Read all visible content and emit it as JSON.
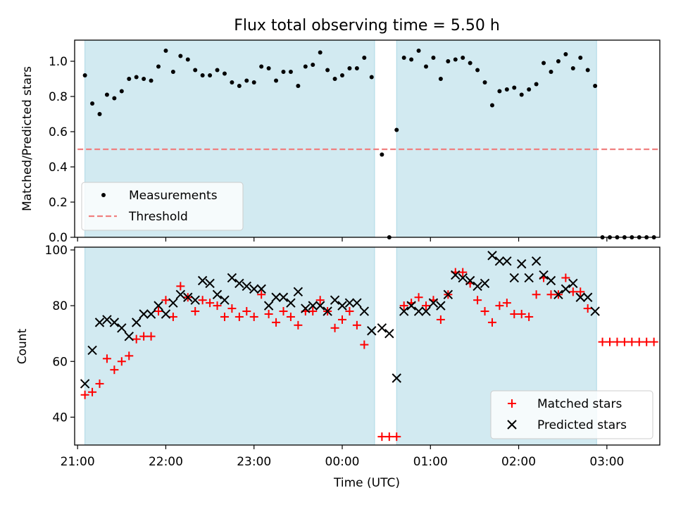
{
  "chart_data": {
    "title": "Flux total observing time = 5.50 h",
    "xlabel": "Time (UTC)",
    "x_ticks": [
      "21:00",
      "22:00",
      "23:00",
      "00:00",
      "01:00",
      "02:00",
      "03:00"
    ],
    "colors": {
      "shade": "#add8e6",
      "measurements": "#000000",
      "threshold": "#f08080",
      "matched": "#ff0000",
      "predicted": "#000000"
    },
    "top_panel": {
      "type": "scatter",
      "ylabel": "Matched/Predicted stars",
      "ylim": [
        0.0,
        1.12
      ],
      "y_ticks": [
        "0.0",
        "0.2",
        "0.4",
        "0.6",
        "0.8",
        "1.0"
      ],
      "legend": {
        "placement": "lower-left",
        "entries": [
          "Measurements",
          "Threshold"
        ]
      },
      "threshold": {
        "value": 0.5,
        "x_start": "21:00",
        "x_end": "03:35"
      },
      "shaded_intervals": [
        [
          "21:05",
          "00:22"
        ],
        [
          "00:37",
          "02:53"
        ]
      ],
      "measurements": {
        "x": [
          "21:05",
          "21:10",
          "21:15",
          "21:20",
          "21:25",
          "21:30",
          "21:35",
          "21:40",
          "21:45",
          "21:50",
          "21:55",
          "22:00",
          "22:05",
          "22:10",
          "22:15",
          "22:20",
          "22:25",
          "22:30",
          "22:35",
          "22:40",
          "22:45",
          "22:50",
          "22:55",
          "23:00",
          "23:05",
          "23:10",
          "23:15",
          "23:20",
          "23:25",
          "23:30",
          "23:35",
          "23:40",
          "23:45",
          "23:50",
          "23:55",
          "00:00",
          "00:05",
          "00:10",
          "00:15",
          "00:20",
          "00:27",
          "00:32",
          "00:37",
          "00:42",
          "00:47",
          "00:52",
          "00:57",
          "01:02",
          "01:07",
          "01:12",
          "01:17",
          "01:22",
          "01:27",
          "01:32",
          "01:37",
          "01:42",
          "01:47",
          "01:52",
          "01:57",
          "02:02",
          "02:07",
          "02:12",
          "02:17",
          "02:22",
          "02:27",
          "02:32",
          "02:37",
          "02:42",
          "02:47",
          "02:52",
          "02:57",
          "03:02",
          "03:07",
          "03:12",
          "03:17",
          "03:22",
          "03:27",
          "03:32"
        ],
        "y": [
          0.92,
          0.76,
          0.7,
          0.81,
          0.79,
          0.83,
          0.9,
          0.91,
          0.9,
          0.89,
          0.97,
          1.06,
          0.94,
          1.03,
          1.01,
          0.95,
          0.92,
          0.92,
          0.95,
          0.93,
          0.88,
          0.86,
          0.89,
          0.88,
          0.97,
          0.96,
          0.89,
          0.94,
          0.94,
          0.86,
          0.97,
          0.98,
          1.05,
          0.95,
          0.9,
          0.92,
          0.96,
          0.96,
          1.02,
          0.91,
          0.47,
          0.0,
          0.61,
          1.02,
          1.01,
          1.06,
          0.97,
          1.02,
          0.9,
          1.0,
          1.01,
          1.02,
          0.99,
          0.95,
          0.88,
          0.75,
          0.83,
          0.84,
          0.85,
          0.81,
          0.84,
          0.87,
          0.99,
          0.94,
          1.0,
          1.04,
          0.96,
          1.02,
          0.95,
          0.86,
          0.0,
          0.0,
          0.0,
          0.0,
          0.0,
          0.0,
          0.0,
          0.0
        ]
      }
    },
    "bottom_panel": {
      "type": "scatter",
      "ylabel": "Count",
      "ylim": [
        30,
        101
      ],
      "y_ticks": [
        "40",
        "60",
        "80",
        "100"
      ],
      "legend": {
        "placement": "lower-right",
        "entries": [
          "Matched stars",
          "Predicted stars"
        ]
      },
      "shaded_intervals": [
        [
          "21:05",
          "00:22"
        ],
        [
          "00:37",
          "02:53"
        ]
      ],
      "matched": {
        "x": [
          "21:05",
          "21:10",
          "21:15",
          "21:20",
          "21:25",
          "21:30",
          "21:35",
          "21:40",
          "21:45",
          "21:50",
          "21:55",
          "22:00",
          "22:05",
          "22:10",
          "22:15",
          "22:20",
          "22:25",
          "22:30",
          "22:35",
          "22:40",
          "22:45",
          "22:50",
          "22:55",
          "23:00",
          "23:05",
          "23:10",
          "23:15",
          "23:20",
          "23:25",
          "23:30",
          "23:35",
          "23:40",
          "23:45",
          "23:50",
          "23:55",
          "00:00",
          "00:05",
          "00:10",
          "00:15",
          "00:20",
          "00:27",
          "00:32",
          "00:37",
          "00:42",
          "00:47",
          "00:52",
          "00:57",
          "01:02",
          "01:07",
          "01:12",
          "01:17",
          "01:22",
          "01:27",
          "01:32",
          "01:37",
          "01:42",
          "01:47",
          "01:52",
          "01:57",
          "02:02",
          "02:07",
          "02:12",
          "02:17",
          "02:22",
          "02:27",
          "02:32",
          "02:37",
          "02:42",
          "02:47",
          "02:52",
          "02:57",
          "03:02",
          "03:07",
          "03:12",
          "03:17",
          "03:22",
          "03:27",
          "03:32"
        ],
        "y": [
          48,
          49,
          52,
          61,
          57,
          60,
          62,
          68,
          69,
          69,
          78,
          82,
          76,
          87,
          83,
          78,
          82,
          81,
          80,
          76,
          79,
          76,
          78,
          76,
          84,
          77,
          74,
          78,
          76,
          73,
          78,
          78,
          82,
          78,
          72,
          75,
          78,
          73,
          66,
          null,
          33,
          33,
          33,
          80,
          81,
          83,
          80,
          82,
          75,
          84,
          92,
          92,
          88,
          82,
          78,
          74,
          80,
          81,
          77,
          77,
          76,
          84,
          90,
          84,
          84,
          90,
          85,
          85,
          79,
          null,
          67,
          67,
          67,
          67,
          67,
          67,
          67,
          67
        ]
      },
      "predicted": {
        "x": [
          "21:05",
          "21:10",
          "21:15",
          "21:20",
          "21:25",
          "21:30",
          "21:35",
          "21:40",
          "21:45",
          "21:50",
          "21:55",
          "22:00",
          "22:05",
          "22:10",
          "22:15",
          "22:20",
          "22:25",
          "22:30",
          "22:35",
          "22:40",
          "22:45",
          "22:50",
          "22:55",
          "23:00",
          "23:05",
          "23:10",
          "23:15",
          "23:20",
          "23:25",
          "23:30",
          "23:35",
          "23:40",
          "23:45",
          "23:50",
          "23:55",
          "00:00",
          "00:05",
          "00:10",
          "00:15",
          "00:20",
          "00:27",
          "00:32",
          "00:37",
          "00:42",
          "00:47",
          "00:52",
          "00:57",
          "01:02",
          "01:07",
          "01:12",
          "01:17",
          "01:22",
          "01:27",
          "01:32",
          "01:37",
          "01:42",
          "01:47",
          "01:52",
          "01:57",
          "02:02",
          "02:07",
          "02:12",
          "02:17",
          "02:22",
          "02:27",
          "02:32",
          "02:37",
          "02:42",
          "02:47",
          "02:52"
        ],
        "y": [
          52,
          64,
          74,
          75,
          74,
          72,
          69,
          74,
          77,
          77,
          80,
          77,
          81,
          84,
          83,
          82,
          89,
          88,
          84,
          82,
          90,
          88,
          87,
          86,
          86,
          80,
          83,
          83,
          81,
          85,
          79,
          80,
          80,
          78,
          82,
          80,
          81,
          81,
          78,
          71,
          72,
          70,
          54,
          78,
          80,
          78,
          78,
          81,
          80,
          84,
          91,
          90,
          89,
          87,
          88,
          98,
          96,
          96,
          90,
          95,
          90,
          96,
          91,
          89,
          84,
          86,
          88,
          83,
          83,
          78
        ]
      }
    }
  }
}
